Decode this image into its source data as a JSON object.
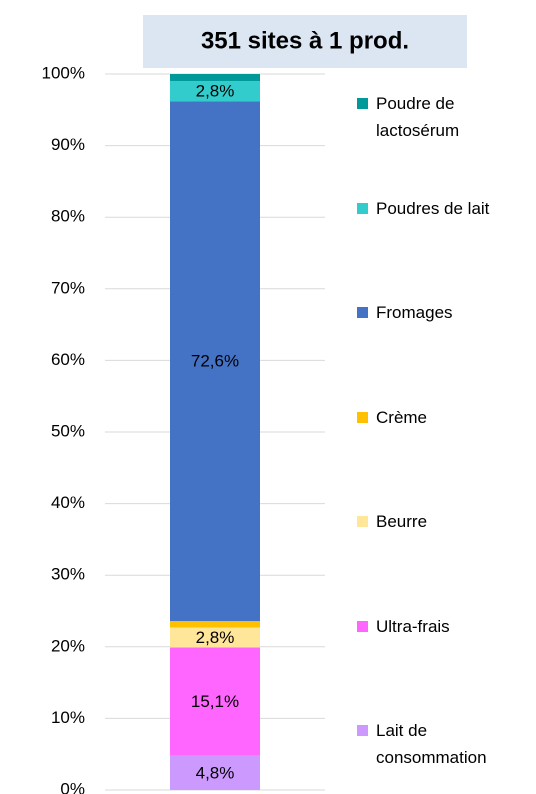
{
  "chart_data": {
    "type": "stacked_bar",
    "title": "351 sites à 1 prod.",
    "categories": [
      null
    ],
    "series": [
      {
        "name": "Lait de consommation",
        "color": "#cc99ff",
        "values": [
          4.8
        ],
        "value_labels": [
          "4,8%"
        ]
      },
      {
        "name": "Ultra-frais",
        "color": "#ff66ff",
        "values": [
          15.1
        ],
        "value_labels": [
          "15,1%"
        ]
      },
      {
        "name": "Beurre",
        "color": "#ffe699",
        "values": [
          2.8
        ],
        "value_labels": [
          "2,8%"
        ]
      },
      {
        "name": "Crème",
        "color": "#ffc000",
        "values": [
          0.9
        ]
      },
      {
        "name": "Fromages",
        "color": "#4472c4",
        "values": [
          72.6
        ],
        "value_labels": [
          "72,6%"
        ]
      },
      {
        "name": "Poudres de lait",
        "color": "#33cccc",
        "values": [
          2.8
        ],
        "value_labels": [
          "2,8%"
        ]
      },
      {
        "name": "Poudre de lactosérum",
        "color": "#009999",
        "values": [
          1.0
        ]
      }
    ],
    "ylim": [
      0,
      100
    ],
    "yticks": [
      {
        "value": 0,
        "label": "0%"
      },
      {
        "value": 10,
        "label": "10%"
      },
      {
        "value": 20,
        "label": "20%"
      },
      {
        "value": 30,
        "label": "30%"
      },
      {
        "value": 40,
        "label": "40%"
      },
      {
        "value": 50,
        "label": "50%"
      },
      {
        "value": 60,
        "label": "60%"
      },
      {
        "value": 70,
        "label": "70%"
      },
      {
        "value": 80,
        "label": "80%"
      },
      {
        "value": 90,
        "label": "90%"
      },
      {
        "value": 100,
        "label": "100%"
      }
    ],
    "grid": true,
    "legend": "right"
  }
}
